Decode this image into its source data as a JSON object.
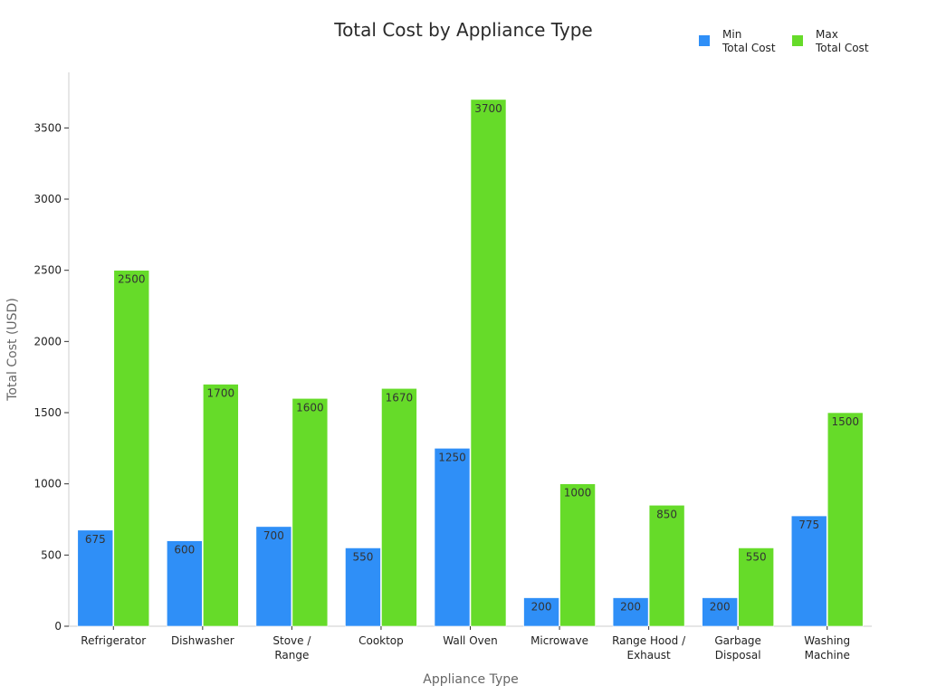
{
  "chart_data": {
    "type": "bar",
    "title": "Total Cost by Appliance Type",
    "xlabel": "Appliance Type",
    "ylabel": "Total Cost (USD)",
    "categories": [
      [
        "Refrigerator"
      ],
      [
        "Dishwasher"
      ],
      [
        "Stove /",
        "Range"
      ],
      [
        "Cooktop"
      ],
      [
        "Wall Oven"
      ],
      [
        "Microwave"
      ],
      [
        "Range Hood /",
        "Exhaust"
      ],
      [
        "Garbage",
        "Disposal"
      ],
      [
        "Washing",
        "Machine"
      ]
    ],
    "series": [
      {
        "name": [
          "Min",
          "Total Cost"
        ],
        "color": "#2f8ff7",
        "values": [
          675,
          600,
          700,
          550,
          1250,
          200,
          200,
          200,
          775
        ]
      },
      {
        "name": [
          "Max",
          "Total Cost"
        ],
        "color": "#66db29",
        "values": [
          2500,
          1700,
          1600,
          1670,
          3700,
          1000,
          850,
          550,
          1500
        ]
      }
    ],
    "yticks": [
      0,
      500,
      1000,
      1500,
      2000,
      2500,
      3000,
      3500
    ],
    "ylim": [
      0,
      3890
    ],
    "grid": false,
    "legend_position": "top-right"
  }
}
